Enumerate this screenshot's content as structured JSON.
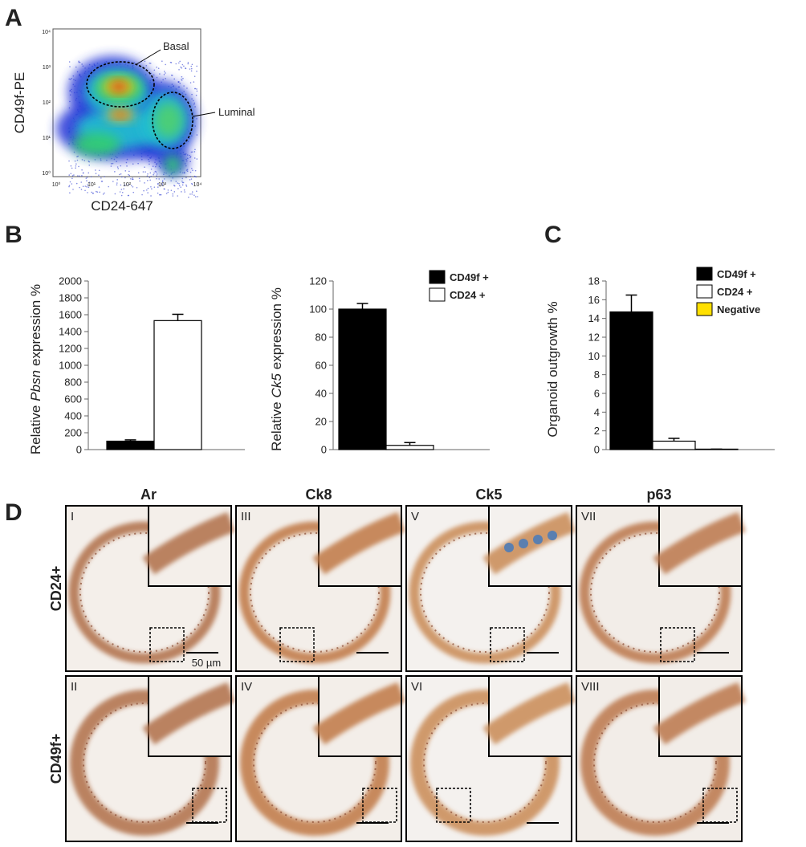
{
  "panel_labels": [
    "A",
    "B",
    "C",
    "D"
  ],
  "panel_a": {
    "ylabel": "CD49f-PE",
    "xlabel": "CD24-647",
    "gates": [
      "Basal",
      "Luminal"
    ],
    "x_tick_labels": [
      "10⁰",
      "10¹",
      "10²",
      "10³",
      "10⁴"
    ],
    "y_tick_labels": [
      "10⁰",
      "10¹",
      "10²",
      "10³",
      "10⁴"
    ]
  },
  "chart_data": [
    {
      "type": "bar",
      "ylabel": {
        "prefix": "Relative",
        "gene": "Pbsn",
        "suffix": "expression %"
      },
      "categories": [
        null
      ],
      "series": [
        {
          "color": "#000000",
          "values": [
            100
          ],
          "errors": [
            15
          ]
        },
        {
          "color": "#ffffff",
          "values": [
            1530
          ],
          "errors": [
            75
          ]
        }
      ],
      "ylim": [
        0,
        2000
      ],
      "yticks": [
        0,
        200,
        400,
        600,
        800,
        1000,
        1200,
        1400,
        1600,
        1800,
        2000
      ],
      "legend": false
    },
    {
      "type": "bar",
      "ylabel": {
        "prefix": "Relative",
        "gene": "Ck5",
        "suffix": "expression %"
      },
      "categories": [
        null
      ],
      "series": [
        {
          "name": "CD49f +",
          "color": "#000000",
          "values": [
            100
          ],
          "errors": [
            4
          ]
        },
        {
          "name": "CD24 +",
          "color": "#ffffff",
          "values": [
            3
          ],
          "errors": [
            2
          ]
        }
      ],
      "ylim": [
        0,
        120
      ],
      "yticks": [
        0,
        20,
        40,
        60,
        80,
        100,
        120
      ],
      "legend": true
    },
    {
      "type": "bar",
      "ylabel": "Organoid outgrowth %",
      "categories": [
        null
      ],
      "series": [
        {
          "name": "CD49f +",
          "color": "#000000",
          "values": [
            14.7
          ],
          "errors": [
            1.8
          ]
        },
        {
          "name": "CD24 +",
          "color": "#ffffff",
          "values": [
            0.9
          ],
          "errors": [
            0.3
          ]
        },
        {
          "name": "Negative",
          "color": "#ffe000",
          "values": [
            0.05
          ],
          "errors": [
            0
          ]
        }
      ],
      "ylim": [
        0,
        18
      ],
      "yticks": [
        0,
        2,
        4,
        6,
        8,
        10,
        12,
        14,
        16,
        18
      ],
      "legend": true
    }
  ],
  "panel_d": {
    "columns": [
      "Ar",
      "Ck8",
      "Ck5",
      "p63"
    ],
    "rows": [
      "CD24+",
      "CD49f+"
    ],
    "tiles": [
      [
        "I",
        "III",
        "V",
        "VII"
      ],
      [
        "II",
        "IV",
        "VI",
        "VIII"
      ]
    ],
    "scale_bar": "50 µm"
  }
}
